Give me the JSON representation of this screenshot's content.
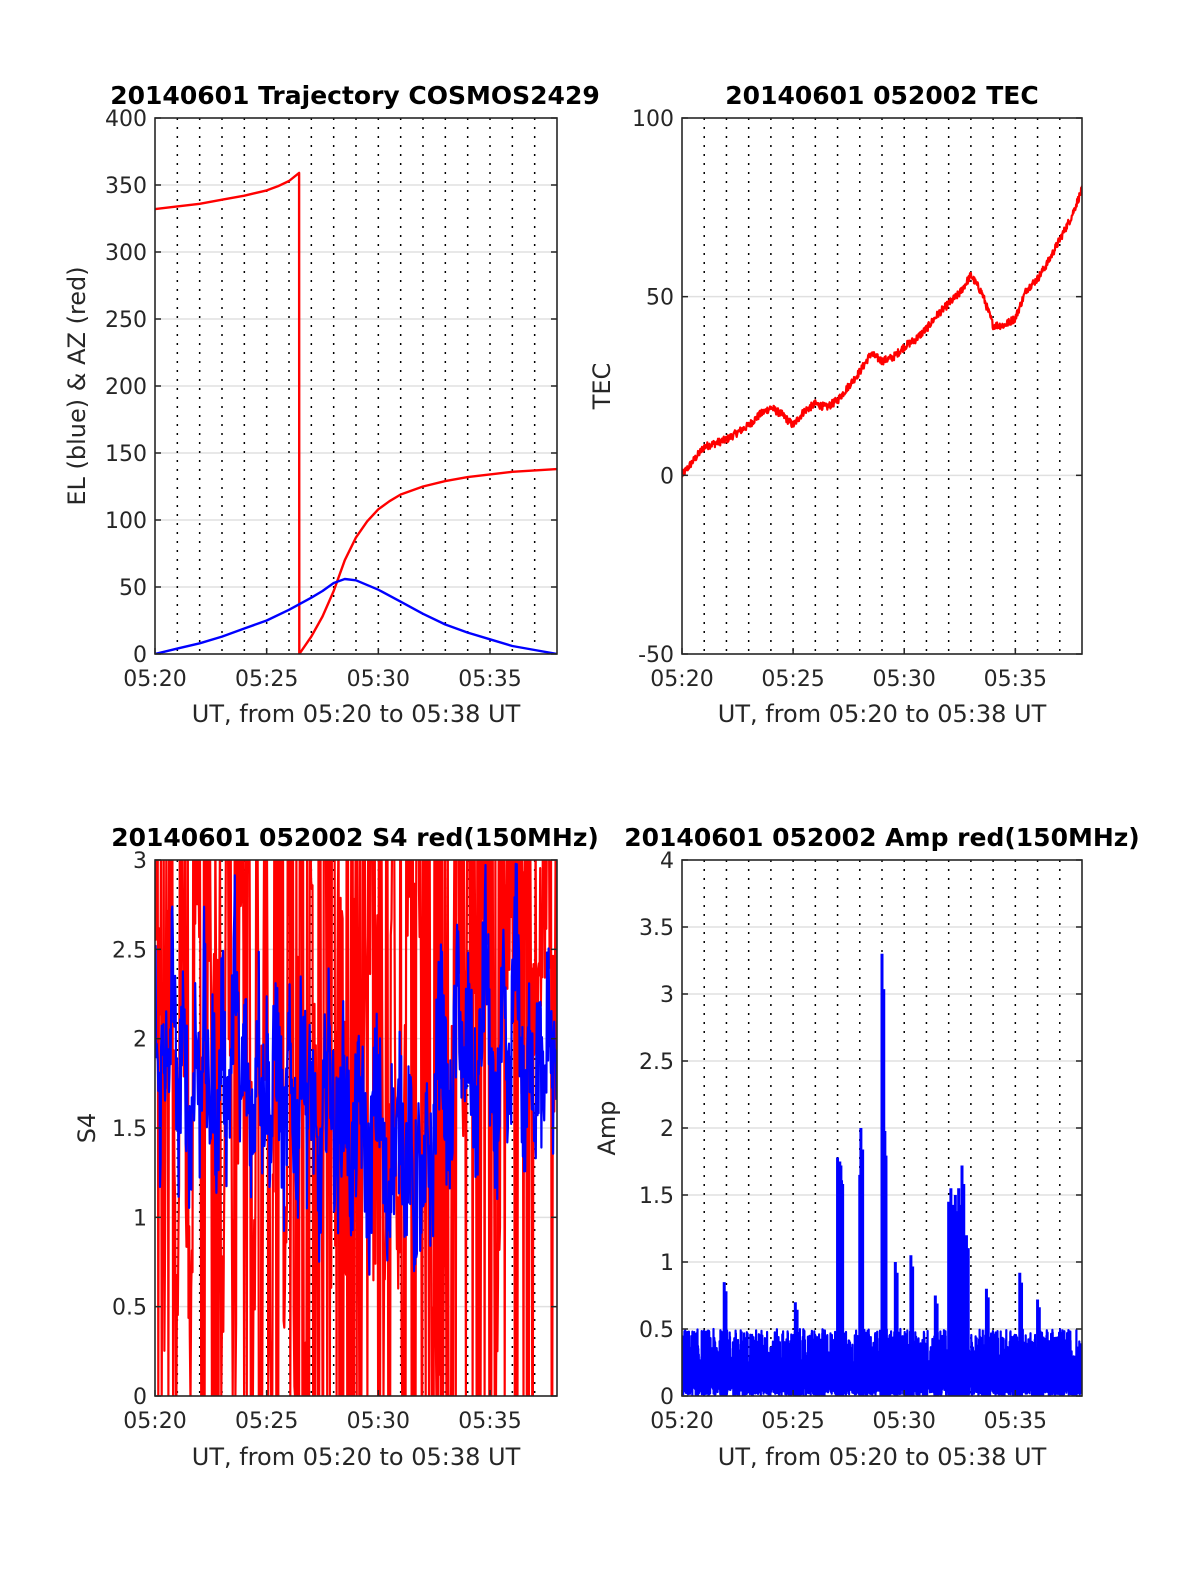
{
  "chart_data": [
    {
      "id": "traj",
      "type": "line",
      "title": "20140601 Trajectory COSMOS2429",
      "xlabel": "UT, from 05:20 to 05:38 UT",
      "ylabel": "EL (blue) & AZ (red)",
      "x_unit": "minutes after 05:20 UT",
      "xlim": [
        0,
        18
      ],
      "ylim": [
        0,
        400
      ],
      "xticks": [
        0,
        5,
        10,
        15
      ],
      "xtick_labels": [
        "05:20",
        "05:25",
        "05:30",
        "05:35"
      ],
      "yticks": [
        0,
        50,
        100,
        150,
        200,
        250,
        300,
        350,
        400
      ],
      "ytick_labels": [
        "0",
        "50",
        "100",
        "150",
        "200",
        "250",
        "300",
        "350",
        "400"
      ],
      "grid": true,
      "series": [
        {
          "color": "#ff0000",
          "x": [
            0,
            1,
            2,
            3,
            4,
            5,
            5.5,
            6,
            6.45,
            6.46,
            7,
            7.5,
            8,
            8.5,
            9,
            9.5,
            10,
            10.5,
            11,
            12,
            13,
            14,
            15,
            16,
            17,
            18
          ],
          "y": [
            332,
            334,
            336,
            339,
            342,
            346,
            349,
            353,
            359,
            0,
            13,
            28,
            47,
            70,
            87,
            99,
            108,
            114,
            119,
            125,
            129,
            132,
            134,
            136,
            137,
            138
          ]
        },
        {
          "color": "#0000ff",
          "x": [
            0,
            1,
            2,
            3,
            4,
            5,
            6,
            7,
            7.5,
            8,
            8.5,
            9,
            10,
            11,
            12,
            13,
            14,
            15,
            16,
            17,
            18
          ],
          "y": [
            0,
            4,
            8,
            13,
            19,
            25,
            33,
            42,
            47,
            53,
            56,
            55,
            48,
            39,
            30,
            22,
            16,
            11,
            6,
            3,
            0
          ]
        }
      ]
    },
    {
      "id": "tec",
      "type": "line",
      "title": "20140601 052002 TEC",
      "xlabel": "UT, from 05:20 to 05:38 UT",
      "ylabel": "TEC",
      "x_unit": "minutes after 05:20 UT",
      "xlim": [
        0,
        18
      ],
      "ylim": [
        -50,
        100
      ],
      "xticks": [
        0,
        5,
        10,
        15
      ],
      "xtick_labels": [
        "05:20",
        "05:25",
        "05:30",
        "05:35"
      ],
      "yticks": [
        -50,
        0,
        50,
        100
      ],
      "ytick_labels": [
        "-50",
        "0",
        "50",
        "100"
      ],
      "grid": true,
      "series": [
        {
          "color": "#ff0000",
          "x": [
            0,
            0.5,
            1,
            1.5,
            2,
            2.5,
            3,
            3.5,
            4,
            4.5,
            5,
            5.5,
            6,
            6.5,
            7,
            7.5,
            8,
            8.5,
            9,
            9.5,
            10,
            10.5,
            11,
            11.5,
            12,
            12.5,
            13,
            13.5,
            14,
            14.5,
            15,
            15.5,
            16,
            16.5,
            17,
            17.5,
            18
          ],
          "y": [
            0,
            4,
            8,
            9,
            10,
            12,
            14,
            17,
            19,
            17,
            14,
            18,
            20,
            19,
            21,
            25,
            29,
            34,
            32,
            33,
            36,
            38,
            41,
            45,
            48,
            51,
            56,
            51,
            42,
            42,
            44,
            52,
            55,
            60,
            66,
            72,
            80
          ]
        }
      ]
    },
    {
      "id": "s4",
      "type": "line",
      "title": "20140601 052002 S4 red(150MHz)",
      "xlabel": "UT, from 05:20 to 05:38 UT",
      "ylabel": "S4",
      "x_unit": "minutes after 05:20 UT",
      "xlim": [
        0,
        18
      ],
      "ylim": [
        0,
        3
      ],
      "xticks": [
        0,
        5,
        10,
        15
      ],
      "xtick_labels": [
        "05:20",
        "05:25",
        "05:30",
        "05:35"
      ],
      "yticks": [
        0,
        0.5,
        1,
        1.5,
        2,
        2.5,
        3
      ],
      "ytick_labels": [
        "0",
        "0.5",
        "1",
        "1.5",
        "2",
        "2.5",
        "3"
      ],
      "grid": true,
      "series": [
        {
          "color": "#ff0000",
          "x": [
            0,
            0.2,
            0.4,
            0.6,
            0.8,
            1,
            1.2,
            1.4,
            1.6,
            1.8,
            2,
            2.2,
            2.4,
            2.6,
            2.8,
            3,
            3.2,
            3.4,
            3.6,
            3.8,
            4,
            4.2,
            4.4,
            4.6,
            4.8,
            5,
            5.2,
            5.4,
            5.6,
            5.8,
            6,
            6.2,
            6.4,
            6.6,
            6.8,
            7,
            7.2,
            7.4,
            7.6,
            7.8,
            8,
            8.2,
            8.4,
            8.6,
            8.8,
            9,
            9.2,
            9.4,
            9.6,
            9.8,
            10,
            10.2,
            10.4,
            10.6,
            10.8,
            11,
            11.2,
            11.4,
            11.6,
            11.8,
            12,
            12.2,
            12.4,
            12.6,
            12.8,
            13,
            13.2,
            13.4,
            13.6,
            13.8,
            14,
            14.2,
            14.4,
            14.6,
            14.8,
            15,
            15.2,
            15.4,
            15.6,
            15.8,
            16,
            16.2,
            16.4,
            16.6,
            16.8,
            17,
            17.2,
            17.4,
            17.6,
            17.8,
            18
          ],
          "y": [
            1.9,
            3,
            0,
            3,
            2.2,
            0,
            3,
            1.5,
            0,
            3,
            2.4,
            0,
            3,
            1.8,
            3,
            0,
            2.9,
            1.6,
            0,
            3,
            2.5,
            3,
            0,
            3,
            1.4,
            3,
            0,
            3,
            2.6,
            0,
            3,
            0,
            3,
            1.9,
            0,
            3,
            2.1,
            0,
            3,
            1.6,
            0,
            3,
            2.8,
            0,
            1.5,
            3,
            0,
            2.2,
            3,
            0,
            3,
            1.7,
            0,
            3,
            1.3,
            0,
            2.4,
            3,
            3,
            3,
            2.6,
            0.8,
            1.2,
            0.5,
            0.4,
            1.3,
            0.7,
            2.5,
            3,
            1.5,
            3,
            2.0,
            3,
            2.6,
            3,
            3,
            1.9,
            0,
            3,
            2.7,
            3,
            3,
            2.2,
            3,
            3,
            1.6,
            3,
            2.4,
            3,
            2.1,
            1.5
          ]
        },
        {
          "color": "#0000ff",
          "x": [
            0,
            0.2,
            0.4,
            0.6,
            0.8,
            1,
            1.2,
            1.4,
            1.6,
            1.8,
            2,
            2.2,
            2.4,
            2.6,
            2.8,
            3,
            3.2,
            3.4,
            3.6,
            3.8,
            4,
            4.2,
            4.4,
            4.6,
            4.8,
            5,
            5.2,
            5.4,
            5.6,
            5.8,
            6,
            6.2,
            6.4,
            6.6,
            6.8,
            7,
            7.2,
            7.4,
            7.6,
            7.8,
            8,
            8.2,
            8.4,
            8.6,
            8.8,
            9,
            9.2,
            9.4,
            9.6,
            9.8,
            10,
            10.2,
            10.4,
            10.6,
            10.8,
            11,
            11.2,
            11.4,
            11.6,
            11.8,
            12,
            12.2,
            12.4,
            12.6,
            12.8,
            13,
            13.2,
            13.4,
            13.6,
            13.8,
            14,
            14.2,
            14.4,
            14.6,
            14.8,
            15,
            15.2,
            15.4,
            15.6,
            15.8,
            16,
            16.2,
            16.4,
            16.6,
            16.8,
            17,
            17.2,
            17.4,
            17.6,
            17.8,
            18
          ],
          "y": [
            2.3,
            1.5,
            2.1,
            1.6,
            2.6,
            1.4,
            2.0,
            1.8,
            1.3,
            2.1,
            1.6,
            2.3,
            1.5,
            1.9,
            1.4,
            2.2,
            1.6,
            1.8,
            2.6,
            1.5,
            2.0,
            1.7,
            1.4,
            2.3,
            1.6,
            1.9,
            1.4,
            2.1,
            1.7,
            1.3,
            1.9,
            1.6,
            1.4,
            2.2,
            1.5,
            1.8,
            1.3,
            1.1,
            1.7,
            2.0,
            1.5,
            1.3,
            1.8,
            1.6,
            1.2,
            1.5,
            1.7,
            1.4,
            1.1,
            1.6,
            1.8,
            1.3,
            1.0,
            1.5,
            1.3,
            1.7,
            1.2,
            1.5,
            1.0,
            1.3,
            0.9,
            1.5,
            1.1,
            1.8,
            2.2,
            1.7,
            1.4,
            1.9,
            2.4,
            1.6,
            2.1,
            1.8,
            1.5,
            2.0,
            2.6,
            1.9,
            1.3,
            1.7,
            2.2,
            1.5,
            2.1,
            2.7,
            1.8,
            1.4,
            2.2,
            1.6,
            2.0,
            1.5,
            2.3,
            1.7,
            1.9
          ]
        }
      ]
    },
    {
      "id": "amp",
      "type": "line",
      "title": "20140601 052002 Amp red(150MHz)",
      "xlabel": "UT, from 05:20 to 05:38 UT",
      "ylabel": "Amp",
      "x_unit": "minutes after 05:20 UT",
      "xlim": [
        0,
        18
      ],
      "ylim": [
        0,
        4
      ],
      "xticks": [
        0,
        5,
        10,
        15
      ],
      "xtick_labels": [
        "05:20",
        "05:25",
        "05:30",
        "05:35"
      ],
      "yticks": [
        0,
        0.5,
        1,
        1.5,
        2,
        2.5,
        3,
        3.5,
        4
      ],
      "ytick_labels": [
        "0",
        "0.5",
        "1",
        "1.5",
        "2",
        "2.5",
        "3",
        "3.5",
        "4"
      ],
      "grid": true,
      "series": [
        {
          "color": "#0000ff",
          "baseline": 0.5,
          "x": [
            0,
            1.9,
            5.1,
            7.0,
            7.1,
            7.15,
            8.0,
            8.05,
            9.0,
            9.05,
            9.1,
            9.6,
            10.3,
            11.4,
            12.0,
            12.1,
            12.3,
            12.45,
            12.6,
            12.8,
            13.7,
            15.2,
            16.0,
            17.5
          ],
          "y": [
            0.5,
            0.85,
            0.7,
            1.78,
            1.75,
            1.72,
            1.65,
            2.0,
            3.3,
            2.15,
            1.95,
            1.0,
            1.05,
            0.75,
            1.45,
            1.55,
            1.5,
            1.55,
            1.72,
            1.2,
            0.8,
            0.92,
            0.72,
            0.55
          ]
        }
      ]
    }
  ]
}
